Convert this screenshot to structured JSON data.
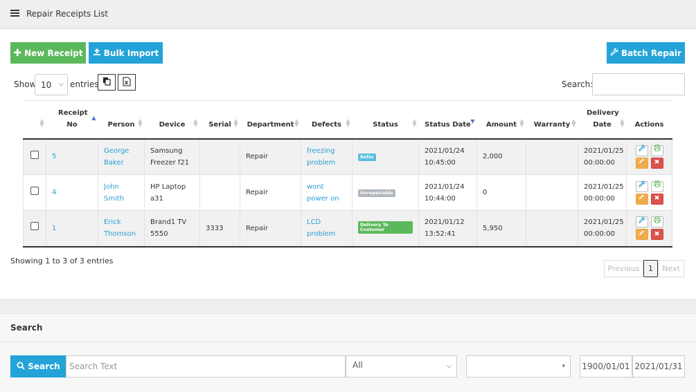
{
  "header": {
    "title": "Repair Receipts List"
  },
  "toolbar": {
    "new_receipt": "New Receipt",
    "bulk_import": "Bulk Import",
    "batch_repair": "Batch Repair"
  },
  "length": {
    "show": "Show",
    "value": "10",
    "entries": "entries"
  },
  "filter": {
    "label": "Search:"
  },
  "table": {
    "columns": [
      "Receipt No",
      "Person",
      "Device",
      "Serial",
      "Department",
      "Defects",
      "Status",
      "Status Date",
      "Amount",
      "Warranty",
      "Delivery Date",
      "Actions"
    ],
    "rows": [
      {
        "receipt_no": "5",
        "person": "George Baker",
        "device": "Samsung Freezer f21",
        "serial": "",
        "department": "Repair",
        "defects": "freezing problem",
        "status": "Refer",
        "status_color": "#5bc0de",
        "status_date": "2021/01/24 10:45:00",
        "amount": "2,000",
        "warranty": "",
        "delivery_date": "2021/01/25 00:00:00"
      },
      {
        "receipt_no": "4",
        "person": "John Smith",
        "device": "HP Laptop a31",
        "serial": "",
        "department": "Repair",
        "defects": "wont power on",
        "status": "Unrepairable",
        "status_color": "#b0b6bb",
        "status_date": "2021/01/24 10:44:00",
        "amount": "0",
        "warranty": "",
        "delivery_date": "2021/01/25 00:00:00"
      },
      {
        "receipt_no": "1",
        "person": "Erick Thomson",
        "device": "Brand1 TV 5550",
        "serial": "3333",
        "department": "Repair",
        "defects": "LCD problem",
        "status": "Delivery To Customer",
        "status_color": "#5cb85c",
        "status_date": "2021/01/12 13:52:41",
        "amount": "5,950",
        "warranty": "",
        "delivery_date": "2021/01/25 00:00:00"
      }
    ]
  },
  "info": {
    "text": "Showing 1 to 3 of 3 entries"
  },
  "pagination": {
    "previous": "Previous",
    "current": "1",
    "next": "Next"
  },
  "search_panel": {
    "title": "Search",
    "button": "Search",
    "placeholder": "Search Text",
    "select_1": "All",
    "select_2": "",
    "date_from": "1900/01/01",
    "date_to": "2021/01/31"
  },
  "icons": [
    "menu-icon",
    "plus-icon",
    "upload-icon",
    "wrench-icon",
    "copy-icon",
    "excel-icon",
    "search-icon",
    "print-icon",
    "pencil-icon",
    "delete-icon"
  ]
}
